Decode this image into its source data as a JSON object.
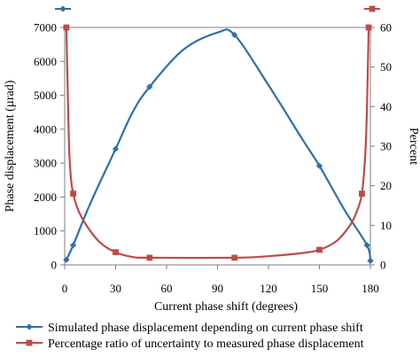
{
  "chart_data": {
    "type": "line",
    "xlabel": "Current phase shift (degrees)",
    "ylabel_left": "Phase displacement (µrad)",
    "ylabel_right": "Percent",
    "xlim": [
      0,
      180
    ],
    "ylim_left": [
      0,
      7000
    ],
    "ylim_right": [
      0,
      60
    ],
    "x_ticks": [
      0,
      30,
      60,
      90,
      120,
      150,
      180
    ],
    "y_ticks_left": [
      0,
      1000,
      2000,
      3000,
      4000,
      5000,
      6000,
      7000
    ],
    "y_ticks_right": [
      0,
      10,
      20,
      30,
      40,
      50,
      60
    ],
    "grid": false,
    "legend_position": "bottom",
    "series": [
      {
        "name": "Simulated phase displacement depending on current phase shift",
        "axis": "left",
        "color": "#2e6fae",
        "marker": "diamond",
        "x": [
          1,
          5,
          30,
          50,
          100,
          150,
          178,
          180
        ],
        "y": [
          150,
          580,
          3420,
          5250,
          6780,
          2920,
          580,
          120
        ],
        "curve_x": [
          1,
          5,
          15,
          30,
          40,
          50,
          70,
          90,
          100,
          120,
          140,
          150,
          165,
          178,
          180
        ],
        "curve_y": [
          150,
          580,
          1800,
          3420,
          4500,
          5250,
          6350,
          6850,
          6780,
          5300,
          3700,
          2920,
          1600,
          580,
          120
        ]
      },
      {
        "name": "Percentage ratio of uncertainty to measured phase displacement",
        "axis": "right",
        "color": "#be4b48",
        "marker": "square",
        "x": [
          1,
          5,
          30,
          50,
          100,
          150,
          175,
          179
        ],
        "y": [
          60,
          18,
          3.2,
          1.8,
          1.8,
          3.8,
          18,
          60
        ],
        "curve_x": [
          1,
          2,
          3,
          5,
          10,
          20,
          30,
          40,
          50,
          100,
          120,
          140,
          150,
          160,
          168,
          172,
          175,
          177,
          178,
          179
        ],
        "curve_y": [
          60,
          40,
          26,
          18,
          12,
          6,
          3.2,
          2.0,
          1.8,
          1.8,
          2.2,
          3.0,
          3.8,
          6,
          10,
          13.5,
          18,
          28,
          40,
          60
        ]
      }
    ]
  }
}
